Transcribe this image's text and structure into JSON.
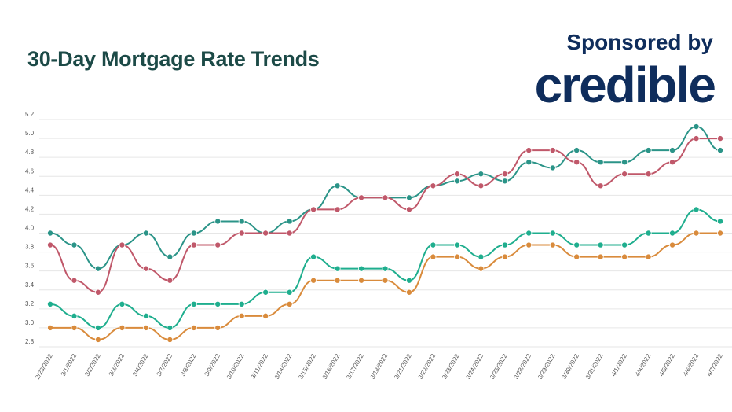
{
  "header": {
    "title": "30-Day Mortgage Rate Trends",
    "sponsor_label": "Sponsored by",
    "sponsor_logo": "credible"
  },
  "chart_data": {
    "type": "line",
    "title": "30-Day Mortgage Rate Trends",
    "xlabel": "",
    "ylabel": "",
    "ylim": [
      2.8,
      5.2
    ],
    "yticks": [
      "2.8",
      "3.0",
      "3.2",
      "3.4",
      "3.6",
      "3.8",
      "4.0",
      "4.2",
      "4.4",
      "4.6",
      "4.8",
      "5.0",
      "5.2"
    ],
    "grid": true,
    "legend": "none",
    "categories": [
      "2/28/2022",
      "3/1/2022",
      "3/2/2022",
      "3/3/2022",
      "3/4/2022",
      "3/7/2022",
      "3/8/2022",
      "3/9/2022",
      "3/10/2022",
      "3/11/2022",
      "3/14/2022",
      "3/15/2022",
      "3/16/2022",
      "3/17/2022",
      "3/18/2022",
      "3/21/2022",
      "3/22/2022",
      "3/23/2022",
      "3/24/2022",
      "3/25/2022",
      "3/28/2022",
      "3/29/2022",
      "3/30/2022",
      "3/31/2022",
      "4/1/2022",
      "4/4/2022",
      "4/5/2022",
      "4/6/2022",
      "4/7/2022"
    ],
    "series": [
      {
        "color": "#2b9488",
        "values": [
          4.0,
          3.875,
          3.625,
          3.875,
          4.0,
          3.75,
          4.0,
          4.125,
          4.125,
          4.0,
          4.125,
          4.25,
          4.5,
          4.375,
          4.375,
          4.375,
          4.5,
          4.55,
          4.625,
          4.55,
          4.75,
          4.69,
          4.875,
          4.75,
          4.75,
          4.875,
          4.875,
          5.125,
          4.875
        ]
      },
      {
        "color": "#c0586a",
        "values": [
          3.875,
          3.5,
          3.375,
          3.875,
          3.625,
          3.5,
          3.875,
          3.875,
          4.0,
          4.0,
          4.0,
          4.25,
          4.25,
          4.375,
          4.375,
          4.25,
          4.5,
          4.625,
          4.5,
          4.625,
          4.875,
          4.875,
          4.75,
          4.5,
          4.625,
          4.625,
          4.75,
          5.0,
          5.0
        ]
      },
      {
        "color": "#1fae8e",
        "values": [
          3.25,
          3.125,
          3.0,
          3.25,
          3.125,
          3.0,
          3.25,
          3.25,
          3.25,
          3.375,
          3.375,
          3.75,
          3.625,
          3.625,
          3.625,
          3.5,
          3.875,
          3.875,
          3.75,
          3.875,
          4.0,
          4.0,
          3.875,
          3.875,
          3.875,
          4.0,
          4.0,
          4.25,
          4.125
        ]
      },
      {
        "color": "#d98b3c",
        "values": [
          3.0,
          3.0,
          2.875,
          3.0,
          3.0,
          2.875,
          3.0,
          3.0,
          3.125,
          3.125,
          3.25,
          3.5,
          3.5,
          3.5,
          3.5,
          3.375,
          3.75,
          3.75,
          3.625,
          3.75,
          3.875,
          3.875,
          3.75,
          3.75,
          3.75,
          3.75,
          3.875,
          4.0,
          4.0
        ]
      }
    ]
  }
}
